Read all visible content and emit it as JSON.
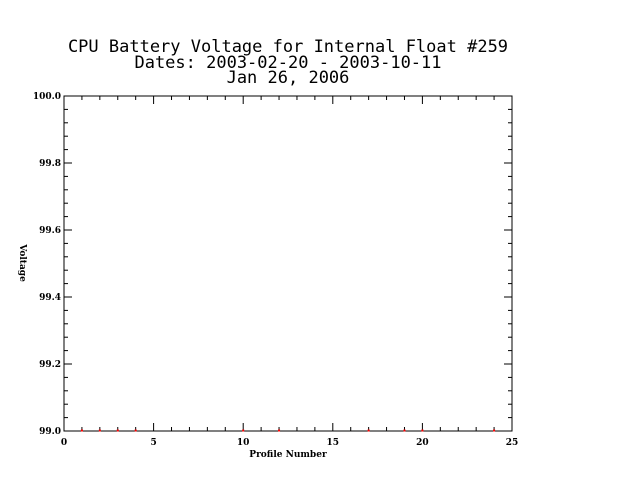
{
  "chart_data": {
    "type": "scatter",
    "title_lines": [
      "CPU Battery Voltage for Internal Float #259",
      "Dates:  2003-02-20 -  2003-10-11",
      "Jan 26, 2006"
    ],
    "xlabel": "Profile Number",
    "ylabel": "Voltage",
    "xlim": [
      0,
      25
    ],
    "ylim": [
      99.0,
      100.0
    ],
    "x_ticks": [
      "0",
      "5",
      "10",
      "15",
      "20",
      "25"
    ],
    "y_ticks": [
      "99.0",
      "99.2",
      "99.4",
      "99.6",
      "99.8",
      "100.0"
    ],
    "marker_color": "#ff0000",
    "series": [
      {
        "x": [
          1,
          2,
          3,
          4,
          10,
          12,
          17,
          19,
          20,
          24
        ],
        "y": [
          99.0,
          99.0,
          99.0,
          99.0,
          99.0,
          99.0,
          99.0,
          99.0,
          99.0,
          99.0
        ]
      }
    ]
  }
}
